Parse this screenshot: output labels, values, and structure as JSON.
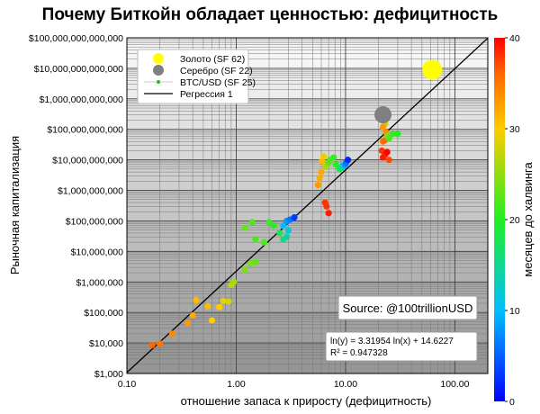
{
  "chart_data": {
    "type": "scatter",
    "title": "Почему Биткойн обладает ценностью: дефицитность",
    "xlabel": "отношение запаса к приросту (дефицитность)",
    "ylabel": "Рыночная капитализация",
    "colorbar_label": "месяцев до халвинга",
    "x_scale": "log",
    "y_scale": "log",
    "xlim": [
      0.1,
      200
    ],
    "ylim": [
      1000,
      100000000000000
    ],
    "x_ticks": [
      0.1,
      1,
      10,
      100
    ],
    "x_tick_labels": [
      "0.10",
      "1.00",
      "10.00",
      "100.00"
    ],
    "y_ticks": [
      1000,
      10000,
      100000,
      1000000,
      10000000,
      100000000,
      1000000000,
      10000000000,
      100000000000,
      1000000000000,
      10000000000000,
      100000000000000
    ],
    "y_tick_labels": [
      "$1,000",
      "$10,000",
      "$100,000",
      "$1,000,000",
      "$10,000,000",
      "$100,000,000",
      "$1,000,000,000",
      "$10,000,000,000",
      "$100,000,000,000",
      "$1,000,000,000,000",
      "$10,000,000,000,000",
      "$100,000,000,000,000"
    ],
    "colorbar_range": [
      0,
      40
    ],
    "colorbar_ticks": [
      0,
      10,
      20,
      30,
      40
    ],
    "legend_position": "top-left",
    "grid": true,
    "legend": [
      {
        "label": "Золото (SF 62)",
        "color": "#ffff00",
        "marker": "large-circle"
      },
      {
        "label": "Серебро (SF 22)",
        "color": "#808080",
        "marker": "large-circle"
      },
      {
        "label": "BTC/USD (SF 25)",
        "color": "#00cc00",
        "marker": "small-dot-line"
      },
      {
        "label": "Регрессия 1",
        "color": "#000000",
        "marker": "line"
      }
    ],
    "reference_points": [
      {
        "name": "Золото",
        "sf": 62,
        "market_cap": 9000000000000,
        "color": "#ffff00"
      },
      {
        "name": "Серебро",
        "sf": 22,
        "market_cap": 300000000000,
        "color": "#808080"
      }
    ],
    "regression": {
      "slope": 3.31954,
      "intercept": 14.6227,
      "r2": 0.947328
    },
    "annotations": {
      "source": "Source: @100trillionUSD",
      "equation": "ln(y) = 3.31954 ln(x) + 14.6227",
      "r_squared": "R² = 0.947328"
    },
    "series": [
      {
        "name": "BTC/USD (SF 25)",
        "points": [
          {
            "x": 0.17,
            "y": 8500,
            "c": 36
          },
          {
            "x": 0.2,
            "y": 9500,
            "c": 35
          },
          {
            "x": 0.26,
            "y": 20000,
            "c": 34
          },
          {
            "x": 0.36,
            "y": 45000,
            "c": 33
          },
          {
            "x": 0.4,
            "y": 80000,
            "c": 32
          },
          {
            "x": 0.43,
            "y": 250000,
            "c": 31
          },
          {
            "x": 0.55,
            "y": 160000,
            "c": 31
          },
          {
            "x": 0.6,
            "y": 55000,
            "c": 30
          },
          {
            "x": 0.7,
            "y": 150000,
            "c": 30
          },
          {
            "x": 0.76,
            "y": 240000,
            "c": 29
          },
          {
            "x": 0.85,
            "y": 230000,
            "c": 28
          },
          {
            "x": 0.9,
            "y": 800000,
            "c": 27
          },
          {
            "x": 0.95,
            "y": 1000000,
            "c": 26
          },
          {
            "x": 1.35,
            "y": 4000000,
            "c": 24
          },
          {
            "x": 1.2,
            "y": 2500000,
            "c": 24
          },
          {
            "x": 1.5,
            "y": 4500000,
            "c": 23
          },
          {
            "x": 1.8,
            "y": 20000000,
            "c": 22
          },
          {
            "x": 1.2,
            "y": 60000000,
            "c": 23
          },
          {
            "x": 1.4,
            "y": 90000000,
            "c": 22
          },
          {
            "x": 1.5,
            "y": 25000000,
            "c": 22
          },
          {
            "x": 2.0,
            "y": 90000000,
            "c": 21
          },
          {
            "x": 2.2,
            "y": 70000000,
            "c": 20
          },
          {
            "x": 2.5,
            "y": 40000000,
            "c": 18
          },
          {
            "x": 2.7,
            "y": 25000000,
            "c": 16
          },
          {
            "x": 2.9,
            "y": 30000000,
            "c": 14
          },
          {
            "x": 3.0,
            "y": 50000000,
            "c": 12
          },
          {
            "x": 2.7,
            "y": 70000000,
            "c": 10
          },
          {
            "x": 2.9,
            "y": 100000000,
            "c": 8
          },
          {
            "x": 3.1,
            "y": 110000000,
            "c": 6
          },
          {
            "x": 3.4,
            "y": 130000000,
            "c": 3
          },
          {
            "x": 5.6,
            "y": 1500000000,
            "c": 33
          },
          {
            "x": 5.8,
            "y": 2500000000,
            "c": 32
          },
          {
            "x": 6.0,
            "y": 4000000000,
            "c": 32
          },
          {
            "x": 6.1,
            "y": 9000000000,
            "c": 31
          },
          {
            "x": 6.3,
            "y": 13000000000,
            "c": 29
          },
          {
            "x": 6.6,
            "y": 6000000000,
            "c": 26
          },
          {
            "x": 7.0,
            "y": 8000000000,
            "c": 23
          },
          {
            "x": 7.2,
            "y": 10000000000,
            "c": 22
          },
          {
            "x": 7.8,
            "y": 12000000000,
            "c": 21
          },
          {
            "x": 8.2,
            "y": 7000000000,
            "c": 20
          },
          {
            "x": 8.8,
            "y": 5000000000,
            "c": 18
          },
          {
            "x": 9.2,
            "y": 5500000000,
            "c": 15
          },
          {
            "x": 9.5,
            "y": 6500000000,
            "c": 12
          },
          {
            "x": 9.9,
            "y": 7000000000,
            "c": 8
          },
          {
            "x": 10.1,
            "y": 8000000000,
            "c": 6
          },
          {
            "x": 10.5,
            "y": 10000000000,
            "c": 2
          },
          {
            "x": 6.5,
            "y": 400000000,
            "c": 38
          },
          {
            "x": 6.7,
            "y": 300000000,
            "c": 38
          },
          {
            "x": 7.0,
            "y": 180000000,
            "c": 39
          },
          {
            "x": 22,
            "y": 250000000000,
            "c": 30
          },
          {
            "x": 23,
            "y": 150000000000,
            "c": 28
          },
          {
            "x": 22,
            "y": 120000000000,
            "c": 33
          },
          {
            "x": 23.5,
            "y": 80000000000,
            "c": 34
          },
          {
            "x": 22,
            "y": 40000000000,
            "c": 35
          },
          {
            "x": 23,
            "y": 45000000000,
            "c": 36
          },
          {
            "x": 24,
            "y": 60000000000,
            "c": 24
          },
          {
            "x": 25,
            "y": 50000000000,
            "c": 22
          },
          {
            "x": 27,
            "y": 70000000000,
            "c": 21
          },
          {
            "x": 30,
            "y": 70000000000,
            "c": 20
          },
          {
            "x": 21.5,
            "y": 20000000000,
            "c": 38
          },
          {
            "x": 22,
            "y": 12000000000,
            "c": 39
          },
          {
            "x": 23,
            "y": 15000000000,
            "c": 39
          },
          {
            "x": 24,
            "y": 18000000000,
            "c": 40
          },
          {
            "x": 25,
            "y": 10000000000,
            "c": 37
          }
        ]
      }
    ]
  }
}
